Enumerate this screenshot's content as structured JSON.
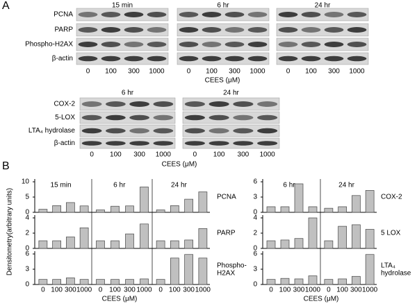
{
  "panel_a": {
    "label": "A",
    "blots": [
      {
        "times": [
          "15 min",
          "6 hr",
          "24 hr"
        ],
        "proteins": [
          "PCNA",
          "PARP",
          "Phospho-H2AX",
          "β-actin"
        ],
        "doses": [
          "0",
          "100",
          "300",
          "1000"
        ],
        "xlabel": "CEES (μM)"
      },
      {
        "times": [
          "6 hr",
          "24 hr"
        ],
        "proteins": [
          "COX-2",
          "5-LOX",
          "LTA₄ hydrolase",
          "β-actin"
        ],
        "doses": [
          "0",
          "100",
          "300",
          "1000"
        ],
        "xlabel": "CEES (μM)"
      }
    ]
  },
  "panel_b": {
    "label": "B"
  },
  "chart_data": [
    {
      "type": "bar",
      "ylabel": "Densitometry(arbitrary units)",
      "panels": [
        "15 min",
        "6 hr",
        "24 hr"
      ],
      "categories": [
        "0",
        "100",
        "300",
        "1000"
      ],
      "xlabel": "CEES (μM)",
      "color": "#c0c0c0",
      "rows": [
        {
          "label": "PCNA",
          "ylim": [
            0,
            10
          ],
          "yticks": [
            0,
            5,
            10
          ],
          "values": [
            [
              1,
              2.2,
              3.2,
              2.1
            ],
            [
              0.8,
              2,
              2.1,
              8.3
            ],
            [
              0.8,
              2.2,
              4.3,
              6.7
            ]
          ]
        },
        {
          "label": "PARP",
          "ylim": [
            0,
            4
          ],
          "yticks": [
            0,
            2,
            4
          ],
          "values": [
            [
              1,
              1,
              1.5,
              2.7
            ],
            [
              1,
              1,
              1.9,
              3.2
            ],
            [
              1,
              1,
              1.1,
              2.6
            ]
          ]
        },
        {
          "label": "Phospho-\nH2AX",
          "ylim": [
            0,
            6
          ],
          "yticks": [
            0,
            3,
            6
          ],
          "values": [
            [
              1,
              1,
              1.3,
              1
            ],
            [
              1,
              1,
              1,
              1.1
            ],
            [
              1,
              5.2,
              5.9,
              5.2
            ]
          ]
        }
      ]
    },
    {
      "type": "bar",
      "panels": [
        "6 hr",
        "24 hr"
      ],
      "categories": [
        "0",
        "100",
        "300",
        "1000"
      ],
      "xlabel": "CEES (μM)",
      "color": "#c0c0c0",
      "rows": [
        {
          "label": "COX-2",
          "ylim": [
            0,
            6
          ],
          "yticks": [
            0,
            3,
            6
          ],
          "values": [
            [
              1.1,
              1.1,
              5.6,
              1.1
            ],
            [
              0.8,
              1.1,
              3.3,
              4.3
            ]
          ]
        },
        {
          "label": "5 LOX",
          "ylim": [
            0,
            4
          ],
          "yticks": [
            0,
            2,
            4
          ],
          "values": [
            [
              1,
              1.1,
              1.3,
              4
            ],
            [
              1,
              2.9,
              3.1,
              2.5
            ]
          ]
        },
        {
          "label": "LTA₄\nhydrolase",
          "ylim": [
            0,
            6
          ],
          "yticks": [
            0,
            3,
            6
          ],
          "values": [
            [
              1,
              1.2,
              1.1,
              1.7
            ],
            [
              1,
              1.1,
              1.6,
              5.9
            ]
          ]
        }
      ]
    }
  ]
}
